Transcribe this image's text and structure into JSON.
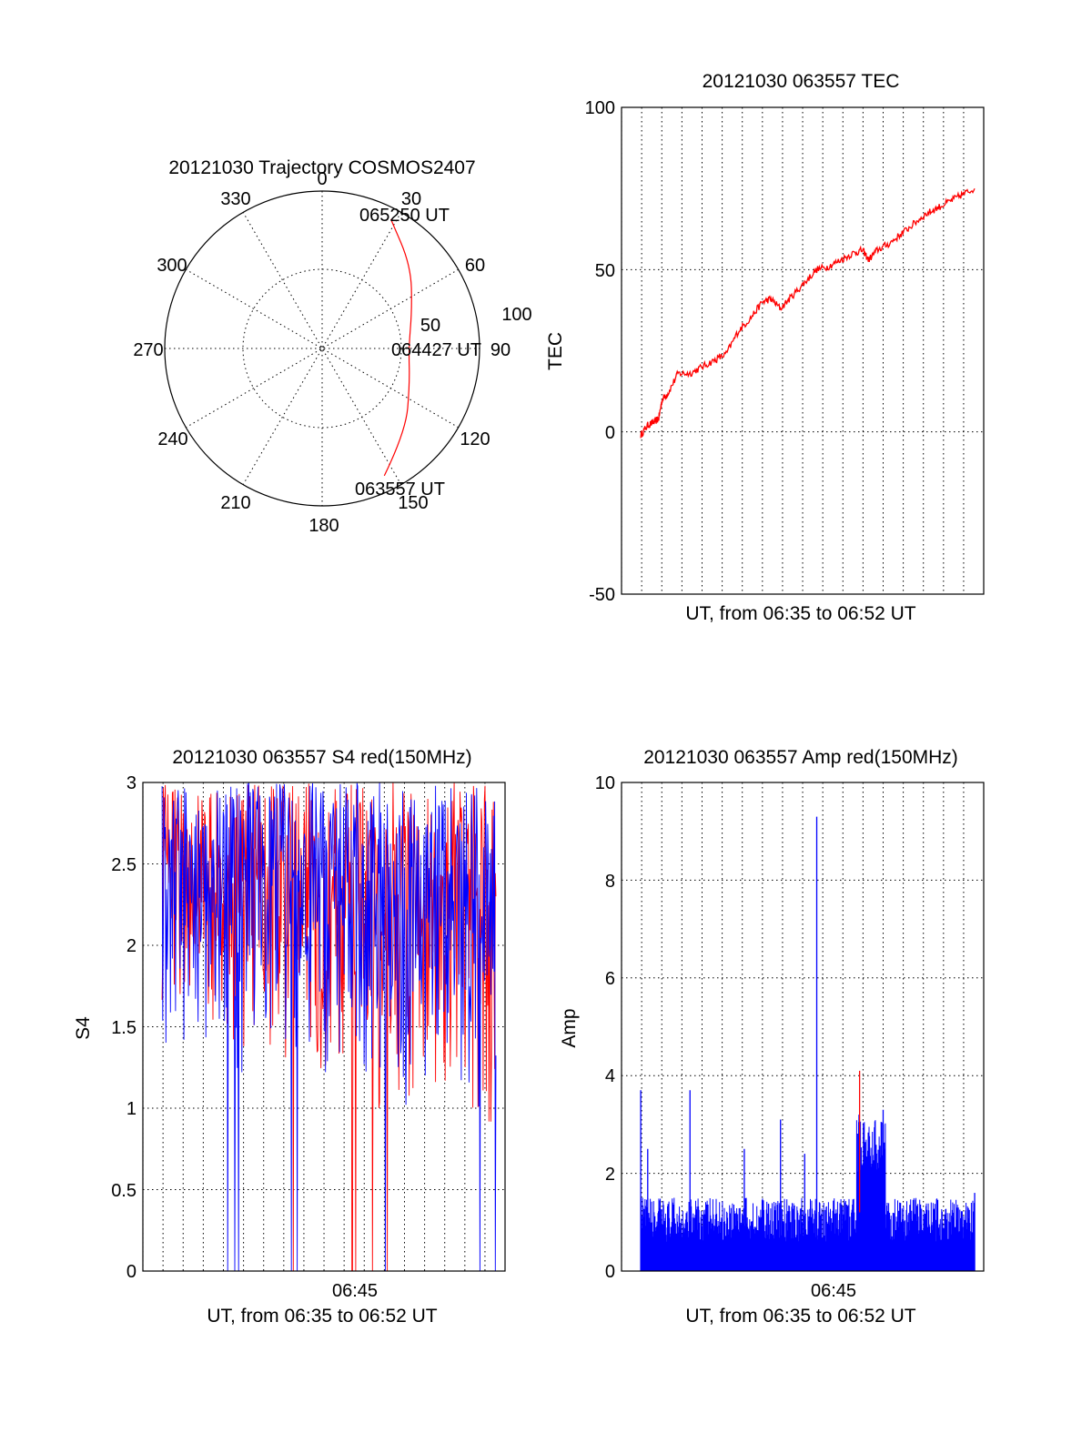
{
  "colors": {
    "red": "#ff0000",
    "blue": "#0000ff",
    "axis": "#000000",
    "background": "#ffffff"
  },
  "chart_data": [
    {
      "id": "trajectory",
      "type": "polar",
      "title": "20121030 Trajectory COSMOS2407",
      "angle_labels": [
        "0",
        "30",
        "60",
        "90",
        "120",
        "150",
        "180",
        "210",
        "240",
        "270",
        "300",
        "330"
      ],
      "radial_labels": [
        "50",
        "100"
      ],
      "rlim": [
        0,
        100
      ],
      "annotations": [
        "065250 UT",
        "064427 UT",
        "063557 UT"
      ],
      "series": [
        {
          "color": "#ff0000",
          "points": [
            {
              "az": 154,
              "zen": 90
            },
            {
              "az": 135,
              "zen": 75
            },
            {
              "az": 112,
              "zen": 60
            },
            {
              "az": 90,
              "zen": 55
            },
            {
              "az": 67,
              "zen": 62
            },
            {
              "az": 47,
              "zen": 77
            },
            {
              "az": 28,
              "zen": 93
            }
          ]
        }
      ]
    },
    {
      "id": "tec",
      "type": "line",
      "title": "20121030 063557 TEC",
      "xlabel": "UT, from 06:35 to 06:52 UT",
      "ylabel": "TEC",
      "xlim": [
        6.5833,
        6.8833
      ],
      "ylim": [
        -50,
        100
      ],
      "yticks": [
        "100",
        "50",
        "0",
        "-50"
      ],
      "grid": true,
      "series": [
        {
          "color": "#ff0000",
          "x": [
            6.5992,
            6.605,
            6.61,
            6.614,
            6.617,
            6.622,
            6.63,
            6.64,
            6.65,
            6.66,
            6.67,
            6.68,
            6.69,
            6.7,
            6.707,
            6.715,
            6.725,
            6.735,
            6.745,
            6.755,
            6.765,
            6.775,
            6.783,
            6.788,
            6.795,
            6.805,
            6.815,
            6.825,
            6.835,
            6.845,
            6.855,
            6.865,
            6.8758
          ],
          "y": [
            -1,
            2,
            3,
            4,
            10,
            12,
            18,
            18,
            20,
            22,
            24,
            31,
            35,
            40,
            41,
            38,
            42,
            46,
            50,
            51,
            53,
            55,
            56,
            53,
            56,
            58,
            61,
            64,
            67,
            69,
            71,
            73,
            75
          ]
        }
      ]
    },
    {
      "id": "s4",
      "type": "line",
      "title": "20121030 063557 S4 red(150MHz)",
      "xlabel": "UT, from 06:35 to 06:52 UT",
      "ylabel": "S4",
      "xlim": [
        6.5833,
        6.8833
      ],
      "ylim": [
        0,
        3
      ],
      "xticks": [
        {
          "value": 6.75,
          "label": "06:45"
        }
      ],
      "yticks": [
        "3",
        "2.5",
        "2",
        "1.5",
        "1",
        "0.5",
        "0"
      ],
      "grid": true,
      "series": [
        {
          "name": "red",
          "color": "#ff0000",
          "x": [
            6.5992,
            6.8758
          ],
          "y_min": [
            1.6,
            0.6
          ],
          "y_max": [
            3,
            3
          ]
        },
        {
          "name": "blue",
          "color": "#0000ff",
          "x": [
            6.5992,
            6.8758
          ],
          "y_min": [
            1.3,
            0.8
          ],
          "y_max": [
            3,
            3
          ]
        }
      ]
    },
    {
      "id": "amp",
      "type": "bar",
      "title": "20121030 063557 Amp red(150MHz)",
      "xlabel": "UT, from 06:35 to 06:52 UT",
      "ylabel": "Amp",
      "xlim": [
        6.5833,
        6.8833
      ],
      "ylim": [
        0,
        10
      ],
      "xticks": [
        {
          "value": 6.75,
          "label": "06:45"
        }
      ],
      "yticks": [
        "10",
        "8",
        "6",
        "4",
        "2",
        "0"
      ],
      "grid": true,
      "series": [
        {
          "name": "red",
          "color": "#ff0000",
          "x": [
            6.7805
          ],
          "y": [
            4.1
          ]
        },
        {
          "name": "blue",
          "color": "#0000ff",
          "x": [
            6.5992,
            6.605,
            6.64,
            6.685,
            6.715,
            6.735,
            6.745,
            6.78,
            6.8,
            6.8758
          ],
          "y": [
            3.7,
            2.5,
            3.7,
            2.5,
            3.1,
            2.4,
            9.3,
            3.2,
            3.3,
            1.6
          ]
        }
      ]
    }
  ]
}
